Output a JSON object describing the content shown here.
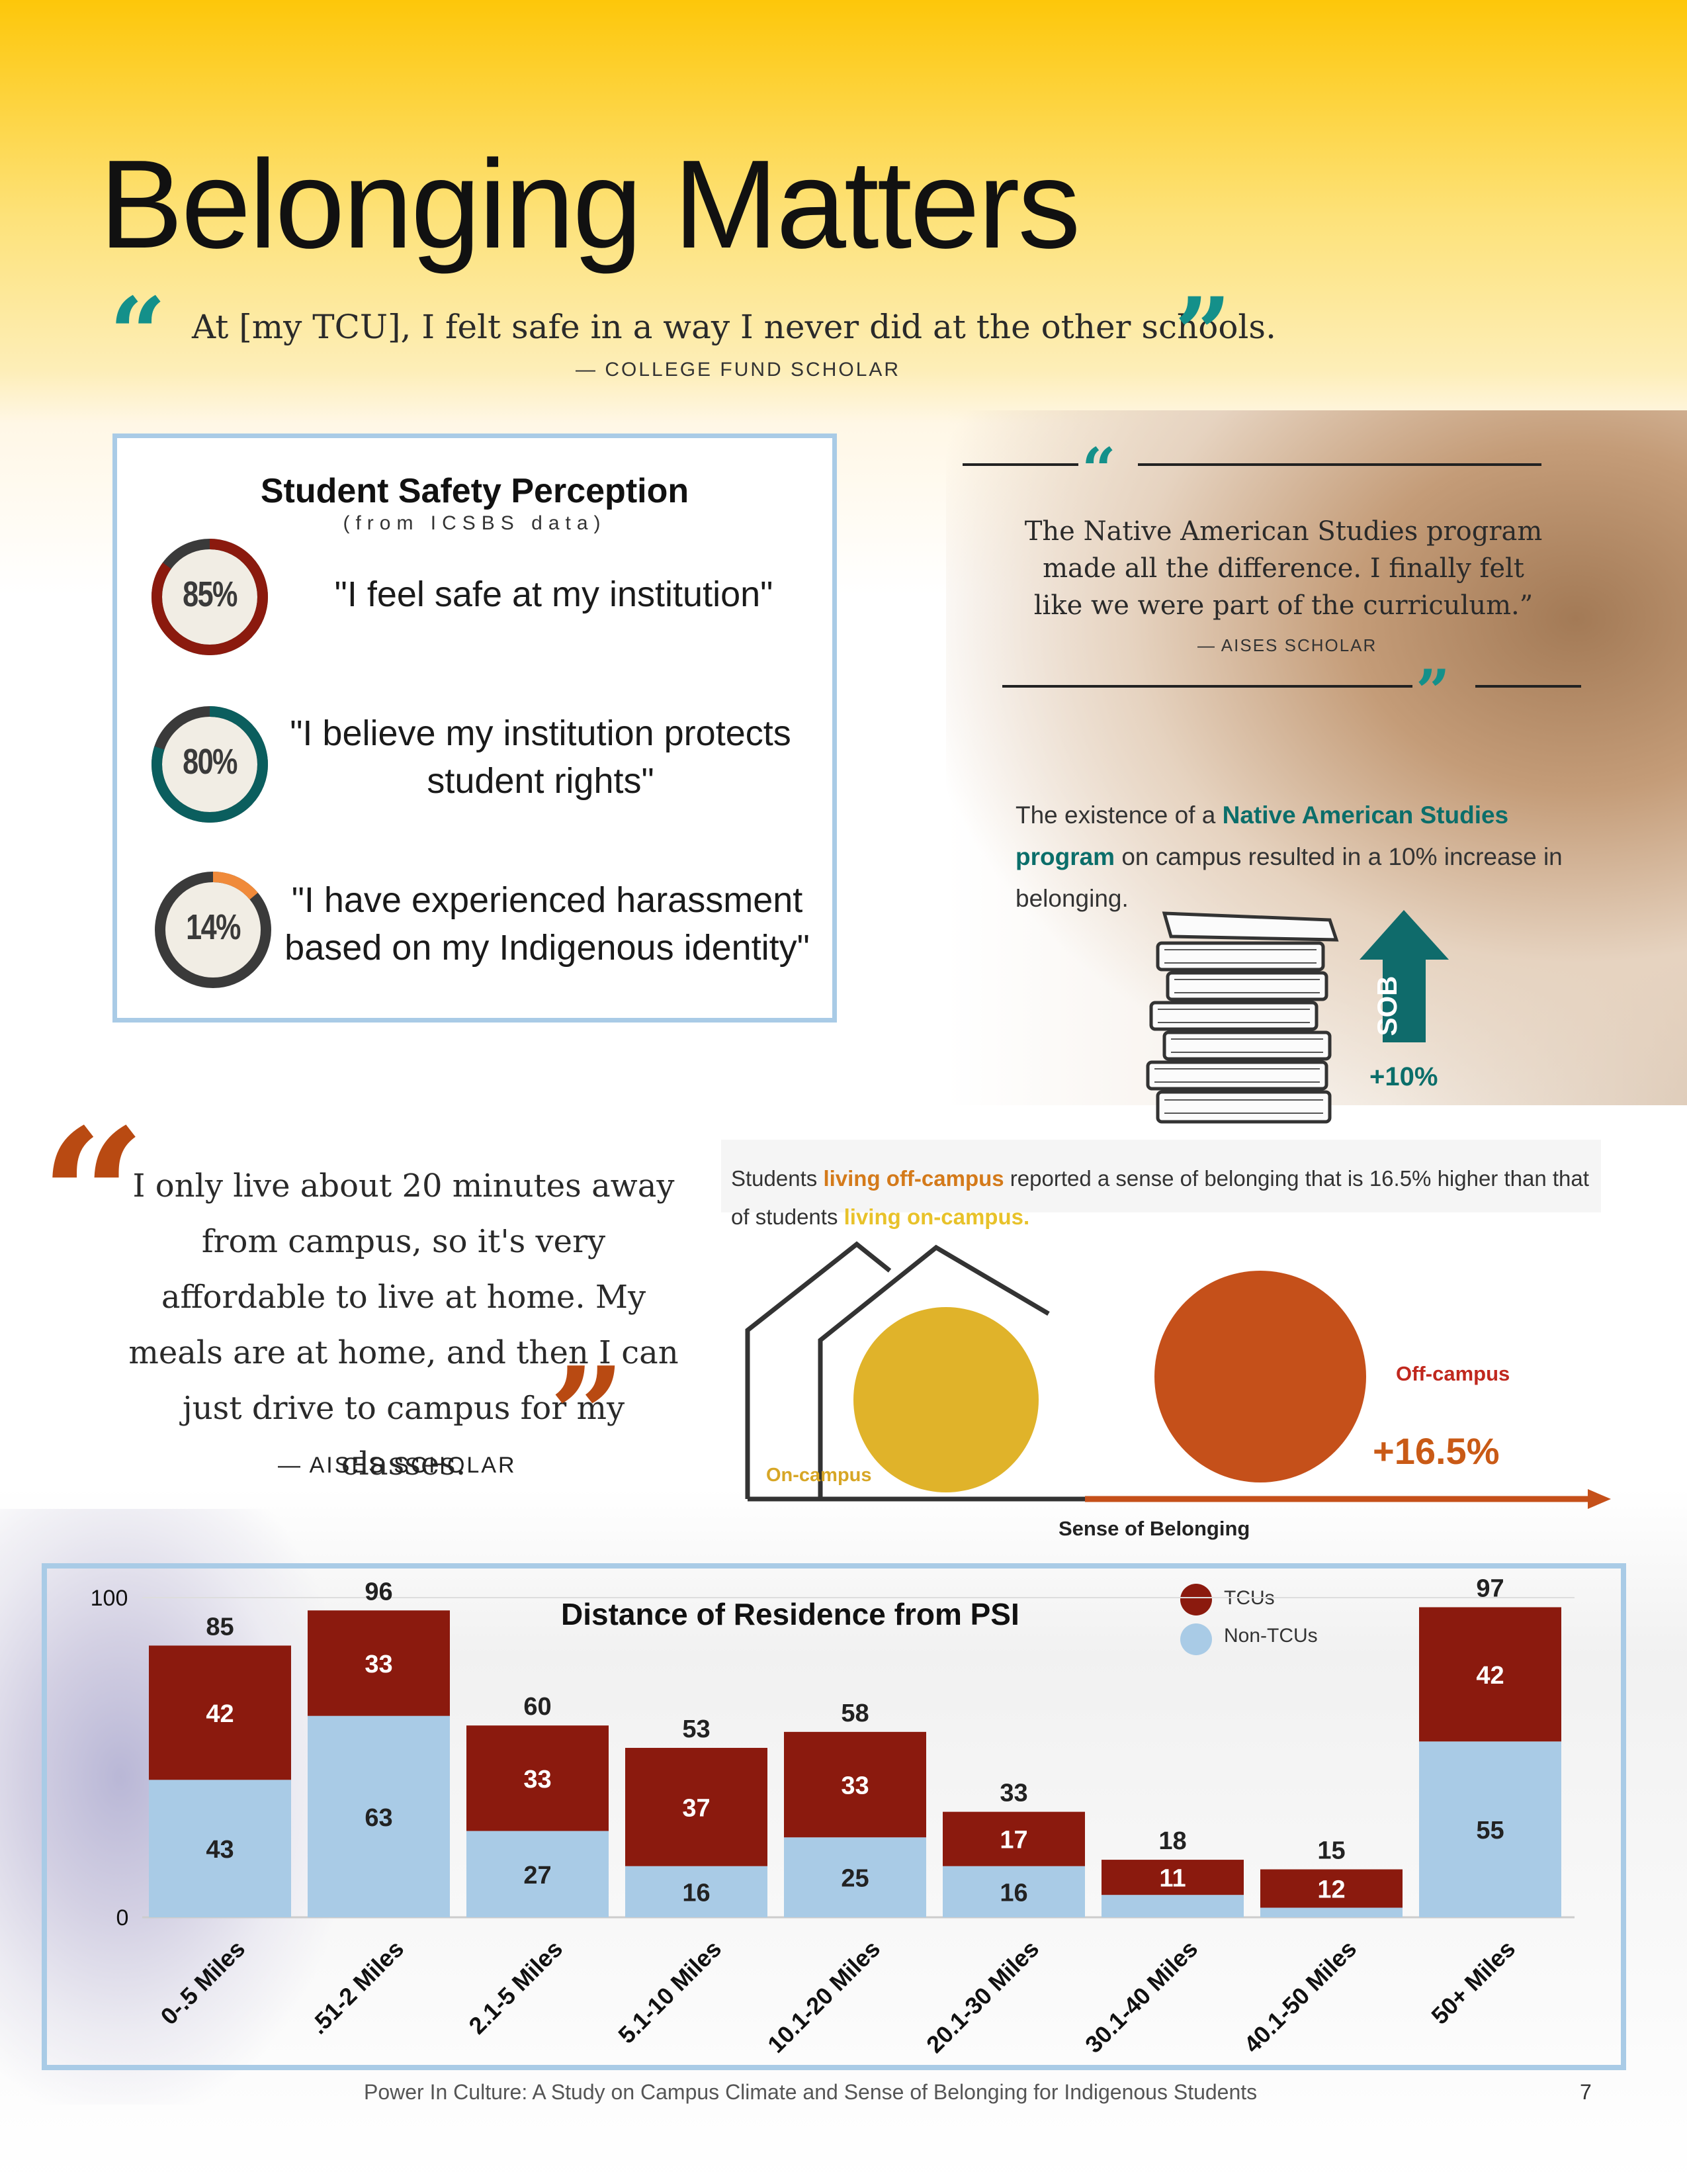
{
  "title": "Belonging Matters",
  "top_quote": {
    "text": "At [my TCU], I felt safe in a way I never did at the other schools.",
    "attribution": "— COLLEGE FUND SCHOLAR"
  },
  "safety_card": {
    "title": "Student Safety Perception",
    "subtitle": "(from ICSBS data)",
    "items": [
      {
        "percent": "85%",
        "value": 85,
        "color": "#8b1a0e",
        "statement": "\"I feel safe at my institution\""
      },
      {
        "percent": "80%",
        "value": 80,
        "color": "#0b5e5e",
        "statement": "\"I believe my institution protects student rights\""
      },
      {
        "percent": "14%",
        "value": 14,
        "color": "#f08a3a",
        "statement": "\"I have experienced harassment based on my Indigenous identity\""
      }
    ]
  },
  "nas_quote": {
    "text": "The Native American Studies program made all the difference. I finally felt like we were part of the curriculum.”",
    "attribution": "— AISES SCHOLAR"
  },
  "nas_stat": {
    "before": "The existence of a ",
    "highlight": "Native American Studies program",
    "after": " on campus resulted in a 10% increase in belonging.",
    "arrow_label": "SOB",
    "increase": "+10%"
  },
  "home_quote": {
    "text": "I only live about 20 minutes away from campus, so it's very affordable to live at home. My meals are at home, and then I can just drive to campus for my classes.",
    "attribution": "— AISES SCHOLAR"
  },
  "off_campus": {
    "part1": "Students ",
    "highlight1": "living off-campus",
    "part2": " reported a sense of belonging that is 16.5% higher than that of students ",
    "highlight2": "living on-campus.",
    "on_label": "On-campus",
    "off_label": "Off-campus",
    "increase": "+16.5%",
    "axis_label": "Sense of Belonging"
  },
  "chart_data": {
    "type": "bar",
    "stacked": true,
    "title": "Distance of Residence from PSI",
    "categories": [
      "0-.5 Miles",
      ".51-2 Miles",
      "2.1-5 Miles",
      "5.1-10 Miles",
      "10.1-20 Miles",
      "20.1-30 Miles",
      "30.1-40 Miles",
      "40.1-50 Miles",
      "50+ Miles"
    ],
    "series": [
      {
        "name": "Non-TCUs",
        "color": "#a9cbe6",
        "values": [
          43,
          63,
          27,
          16,
          25,
          16,
          7,
          3,
          55
        ],
        "labels": [
          "43",
          "63",
          "27",
          "16",
          "25",
          "16",
          "",
          "",
          "55"
        ]
      },
      {
        "name": "TCUs",
        "color": "#8b1a0e",
        "values": [
          42,
          33,
          33,
          37,
          33,
          17,
          11,
          12,
          42
        ],
        "labels": [
          "42",
          "33",
          "33",
          "37",
          "33",
          "17",
          "11",
          "12",
          "42"
        ]
      }
    ],
    "totals": [
      85,
      96,
      60,
      53,
      58,
      33,
      18,
      15,
      97
    ],
    "y_ticks": [
      "100",
      "0"
    ],
    "ylim": [
      0,
      100
    ],
    "legend": "top-right"
  },
  "footer": {
    "text": "Power In Culture: A Study on Campus Climate and Sense of Belonging for Indigenous Students",
    "page": "7"
  }
}
